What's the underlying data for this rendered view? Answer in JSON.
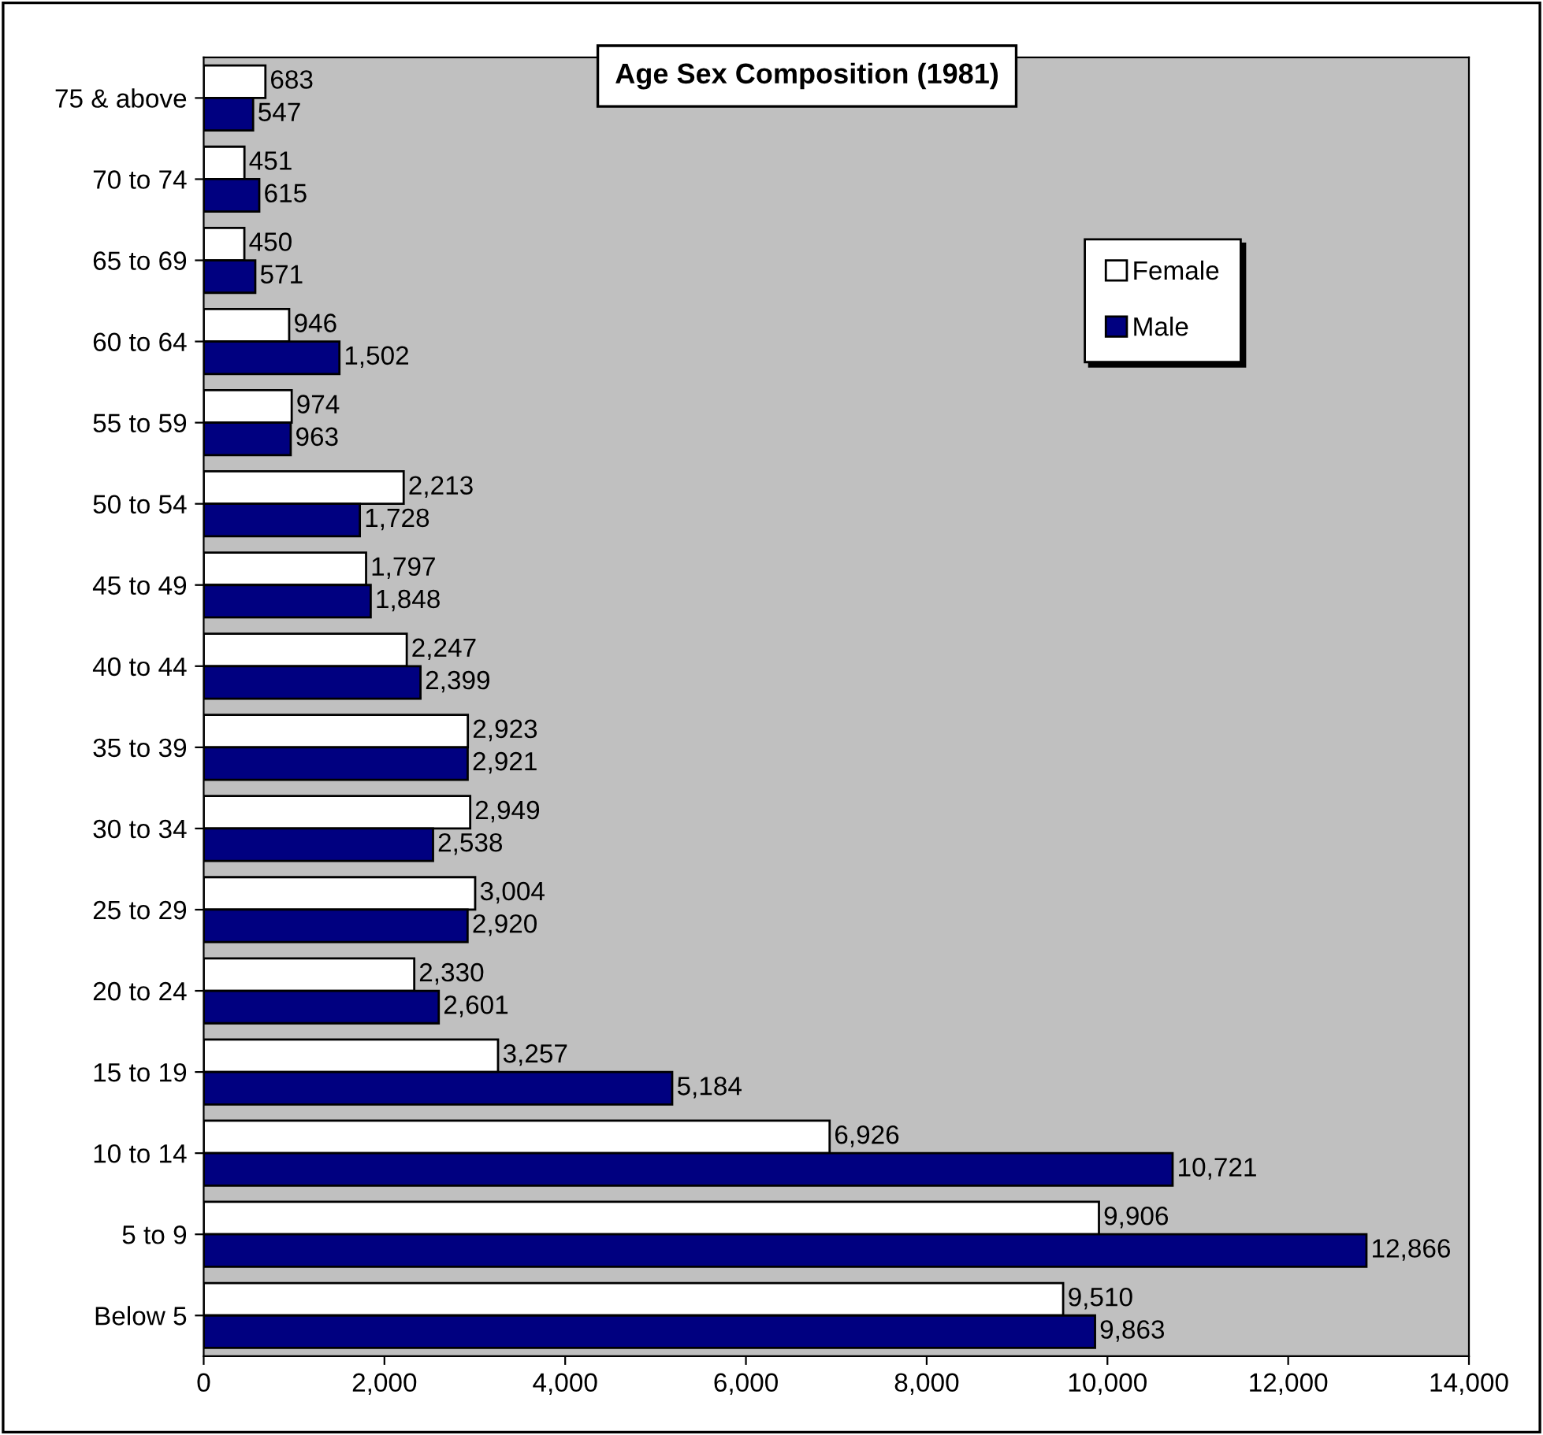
{
  "chart_data": {
    "type": "bar",
    "orientation": "horizontal",
    "title": "Age Sex Composition (1981)",
    "categories": [
      "75 & above",
      "70 to 74",
      "65 to 69",
      "60 to 64",
      "55 to 59",
      "50 to 54",
      "45 to 49",
      "40 to 44",
      "35 to 39",
      "30 to 34",
      "25 to 29",
      "20 to 24",
      "15 to 19",
      "10 to 14",
      "5 to 9",
      "Below 5"
    ],
    "series": [
      {
        "name": "Female",
        "color": "#ffffff",
        "values": [
          683,
          451,
          450,
          946,
          974,
          2213,
          1797,
          2247,
          2923,
          2949,
          3004,
          2330,
          3257,
          6926,
          9906,
          9510
        ],
        "value_labels": [
          "683",
          "451",
          "450",
          "946",
          "974",
          "2,213",
          "1,797",
          "2,247",
          "2,923",
          "2,949",
          "3,004",
          "2,330",
          "3,257",
          "6,926",
          "9,906",
          "9,510"
        ]
      },
      {
        "name": "Male",
        "color": "#000080",
        "values": [
          547,
          615,
          571,
          1502,
          963,
          1728,
          1848,
          2399,
          2921,
          2538,
          2920,
          2601,
          5184,
          10721,
          12866,
          9863
        ],
        "value_labels": [
          "547",
          "615",
          "571",
          "1,502",
          "963",
          "1,728",
          "1,848",
          "2,399",
          "2,921",
          "2,538",
          "2,920",
          "2,601",
          "5,184",
          "10,721",
          "12,866",
          "9,863"
        ]
      }
    ],
    "xlim": [
      0,
      14000
    ],
    "xticks": [
      0,
      {
        "value": 2000,
        "label": "2,000"
      },
      {
        "value": 4000,
        "label": "4,000"
      },
      {
        "value": 6000,
        "label": "6,000"
      },
      {
        "value": 8000,
        "label": "8,000"
      },
      {
        "value": 10000,
        "label": "10,000"
      },
      {
        "value": 12000,
        "label": "12,000"
      },
      {
        "value": 14000,
        "label": "14,000"
      }
    ],
    "grid": false,
    "legend": "top right"
  }
}
